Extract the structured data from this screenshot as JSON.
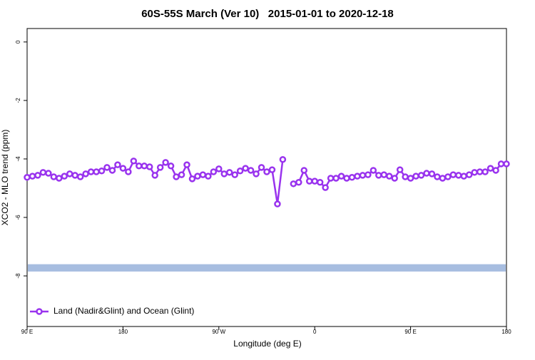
{
  "chart_data": {
    "type": "line",
    "title": "60S-55S March (Ver 10)   2015-01-01 to 2020-12-18",
    "xlabel": "Longitude (deg E)",
    "ylabel": "XCO2 - MLO trend (ppm)",
    "x": [
      90,
      95,
      100,
      105,
      110,
      115,
      120,
      125,
      130,
      135,
      140,
      145,
      150,
      155,
      160,
      165,
      170,
      175,
      180,
      185,
      190,
      195,
      200,
      205,
      210,
      215,
      220,
      225,
      230,
      235,
      240,
      245,
      250,
      255,
      260,
      265,
      270,
      275,
      280,
      285,
      290,
      295,
      300,
      305,
      310,
      315,
      320,
      325,
      330,
      335,
      340,
      345,
      350,
      355,
      360,
      365,
      370,
      375,
      380,
      385,
      390,
      395,
      400,
      405,
      410,
      415,
      420,
      425,
      430,
      435,
      440,
      445,
      450,
      455,
      460,
      465,
      470,
      475,
      480,
      485,
      490,
      495,
      500,
      505,
      510,
      515,
      520,
      525,
      530,
      535,
      540
    ],
    "series": [
      {
        "name": "Land (Nadir&Glint) and Ocean (Glint)",
        "color": "#9933ee",
        "values": [
          -4.63,
          -4.59,
          -4.56,
          -4.46,
          -4.49,
          -4.61,
          -4.66,
          -4.59,
          -4.51,
          -4.56,
          -4.61,
          -4.51,
          -4.44,
          -4.44,
          -4.41,
          -4.29,
          -4.39,
          -4.2,
          -4.32,
          -4.44,
          -4.07,
          -4.24,
          -4.24,
          -4.27,
          -4.56,
          -4.29,
          -4.12,
          -4.24,
          -4.61,
          -4.54,
          -4.2,
          -4.68,
          -4.59,
          -4.54,
          -4.59,
          -4.44,
          -4.34,
          -4.51,
          -4.46,
          -4.54,
          -4.41,
          -4.32,
          -4.39,
          -4.51,
          -4.29,
          -4.44,
          -4.37,
          -5.54,
          -4.02,
          null,
          -4.85,
          -4.8,
          -4.39,
          -4.76,
          -4.76,
          -4.8,
          -4.98,
          -4.66,
          -4.66,
          -4.59,
          -4.66,
          -4.63,
          -4.59,
          -4.56,
          -4.54,
          -4.39,
          -4.56,
          -4.54,
          -4.59,
          -4.66,
          -4.37,
          -4.61,
          -4.66,
          -4.59,
          -4.56,
          -4.49,
          -4.51,
          -4.61,
          -4.66,
          -4.61,
          -4.54,
          -4.56,
          -4.59,
          -4.54,
          -4.46,
          -4.44,
          -4.44,
          -4.32,
          -4.39,
          -4.17,
          -4.17
        ]
      }
    ],
    "band_ylim": [
      -7.85,
      -7.6
    ],
    "band_color": "#a7bde0",
    "xlim": [
      90,
      540
    ],
    "xticks": [
      {
        "value": 90,
        "label": "90 E"
      },
      180,
      {
        "value": 270,
        "label": "90 W"
      },
      {
        "value": 360,
        "label": "0"
      },
      {
        "value": 450,
        "label": "90 E"
      },
      {
        "value": 540,
        "label": "180"
      }
    ],
    "ylim": [
      -9.73,
      0.46
    ],
    "yticks": [
      0,
      -2,
      -4,
      -6,
      -8
    ],
    "legend": "bottom-left"
  }
}
